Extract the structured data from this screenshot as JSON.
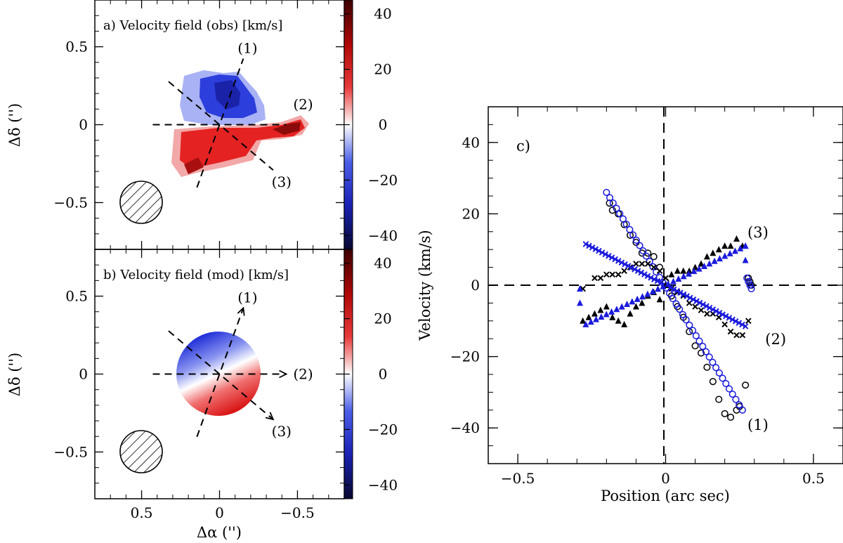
{
  "chart_data": [
    {
      "type": "heatmap",
      "panel": "a",
      "title": "a) Velocity field (obs) [km/s]",
      "ylabel": "Δδ ('')",
      "xlim": [
        0.8,
        -0.8
      ],
      "ylim": [
        -0.8,
        0.8
      ],
      "yticks": [
        "0.5",
        "0",
        "−0.5"
      ],
      "colorbar": {
        "range": [
          -45,
          45
        ],
        "ticks": [
          "40",
          "20",
          "0",
          "−20",
          "−40"
        ],
        "colors": [
          "#0a0a3c",
          "#1f2fd8",
          "#ffffff",
          "#e01818",
          "#3c0000"
        ]
      },
      "cuts": [
        {
          "label": "(1)",
          "angle_deg": 20
        },
        {
          "label": "(2)",
          "angle_deg": 90
        },
        {
          "label": "(3)",
          "angle_deg": 130
        }
      ],
      "beam": {
        "x": 0.5,
        "y": -0.5,
        "radius": 0.135
      }
    },
    {
      "type": "heatmap",
      "panel": "b",
      "title": "b) Velocity field (mod) [km/s]",
      "ylabel": "Δδ ('')",
      "xlabel": "Δα ('')",
      "xlim": [
        0.8,
        -0.8
      ],
      "ylim": [
        -0.8,
        0.8
      ],
      "xticks": [
        "0.5",
        "0",
        "−0.5"
      ],
      "yticks": [
        "0.5",
        "0",
        "−0.5"
      ],
      "colorbar": {
        "range": [
          -45,
          45
        ],
        "ticks": [
          "40",
          "20",
          "0",
          "−20",
          "−40"
        ]
      },
      "model_disk": {
        "x": 0,
        "y": 0,
        "radius": 0.27
      },
      "cuts": [
        {
          "label": "(1)",
          "angle_deg": 20
        },
        {
          "label": "(2)",
          "angle_deg": 90
        },
        {
          "label": "(3)",
          "angle_deg": 130
        }
      ],
      "beam": {
        "x": 0.5,
        "y": -0.5,
        "radius": 0.135
      }
    },
    {
      "type": "scatter",
      "panel": "c",
      "title": "c)",
      "xlabel": "Position (arc sec)",
      "ylabel": "Velocity (km/s)",
      "xlim": [
        -0.6,
        0.6
      ],
      "ylim": [
        -50,
        50
      ],
      "xticks": [
        "−0.5",
        "0",
        "0.5"
      ],
      "yticks": [
        "40",
        "20",
        "0",
        "−20",
        "−40"
      ],
      "annotations": [
        {
          "text": "(1)",
          "x": 0.26,
          "y": -39
        },
        {
          "text": "(2)",
          "x": 0.32,
          "y": -15
        },
        {
          "text": "(3)",
          "x": 0.26,
          "y": 15
        }
      ],
      "series": [
        {
          "name": "cut (1) obs",
          "marker": "circle",
          "color": "#000000",
          "x": [
            -0.19,
            -0.18,
            -0.16,
            -0.14,
            -0.12,
            -0.1,
            -0.08,
            -0.06,
            -0.04,
            -0.02,
            0.0,
            0.02,
            0.04,
            0.06,
            0.08,
            0.1,
            0.12,
            0.14,
            0.16,
            0.18,
            0.2,
            0.22,
            0.24,
            0.25,
            0.27
          ],
          "y": [
            23,
            21,
            20,
            17,
            14,
            12,
            9,
            9,
            8,
            5,
            1,
            -3,
            -6,
            -9,
            -13,
            -17,
            -19,
            -23,
            -27,
            -32,
            -36,
            -37,
            -35,
            -34,
            -28
          ]
        },
        {
          "name": "cut (1) model",
          "marker": "circle",
          "color": "#1a1adc",
          "x_range": [
            -0.2,
            0.26
          ],
          "y_range": [
            26,
            -35
          ],
          "count": 42
        },
        {
          "name": "cut (1) obs tail",
          "marker": "circle",
          "color": "#000000",
          "x": [
            0.28,
            0.285,
            0.29
          ],
          "y": [
            2,
            1,
            0
          ]
        },
        {
          "name": "cut (1) model tail",
          "marker": "circle",
          "color": "#1a1adc",
          "x": [
            0.275,
            0.28,
            0.285,
            0.29
          ],
          "y": [
            2,
            1,
            0,
            -1
          ]
        },
        {
          "name": "cut (2) obs",
          "marker": "cross",
          "color": "#000000",
          "x": [
            -0.28,
            -0.24,
            -0.22,
            -0.2,
            -0.18,
            -0.16,
            -0.14,
            -0.12,
            -0.1,
            -0.08,
            -0.06,
            -0.04,
            -0.02,
            0.0,
            0.02,
            0.04,
            0.06,
            0.08,
            0.1,
            0.12,
            0.14,
            0.16,
            0.18,
            0.2,
            0.22,
            0.24,
            0.26,
            0.28
          ],
          "y": [
            -1,
            2,
            2,
            3,
            3,
            3,
            4,
            5,
            6,
            6,
            6,
            5,
            4,
            2,
            -1,
            -2,
            -3,
            -5,
            -6,
            -7,
            -8,
            -8,
            -9,
            -11,
            -13,
            -14,
            -14,
            -10
          ]
        },
        {
          "name": "cut (2) model",
          "marker": "cross",
          "color": "#1a1adc",
          "x_range": [
            -0.27,
            0.27
          ],
          "y_range": [
            11.5,
            -11.5
          ],
          "count": 50
        },
        {
          "name": "cut (3) obs",
          "marker": "triangle",
          "color": "#000000",
          "x": [
            -0.28,
            -0.26,
            -0.24,
            -0.22,
            -0.2,
            -0.18,
            -0.16,
            -0.14,
            -0.12,
            -0.1,
            -0.08,
            -0.06,
            -0.04,
            -0.02,
            0.0,
            0.02,
            0.04,
            0.06,
            0.08,
            0.1,
            0.12,
            0.14,
            0.16,
            0.18,
            0.2,
            0.22,
            0.24,
            0.26
          ],
          "y": [
            -10,
            -9,
            -8,
            -7,
            -6,
            -9,
            -10,
            -11,
            -8,
            -6,
            -5,
            -3,
            -2,
            -4,
            0,
            3,
            4,
            4,
            4,
            5,
            6,
            8,
            9,
            10,
            11,
            11,
            13,
            11
          ]
        },
        {
          "name": "cut (3) model",
          "marker": "triangle",
          "color": "#1a1adc",
          "x_range": [
            -0.27,
            0.27
          ],
          "y_range": [
            -11,
            11
          ],
          "count": 32
        },
        {
          "name": "cut (3) model ends",
          "marker": "triangle",
          "color": "#1a1adc",
          "x": [
            -0.29,
            -0.29,
            0.27,
            0.27
          ],
          "y": [
            -1,
            -5,
            7,
            11
          ]
        }
      ]
    }
  ]
}
